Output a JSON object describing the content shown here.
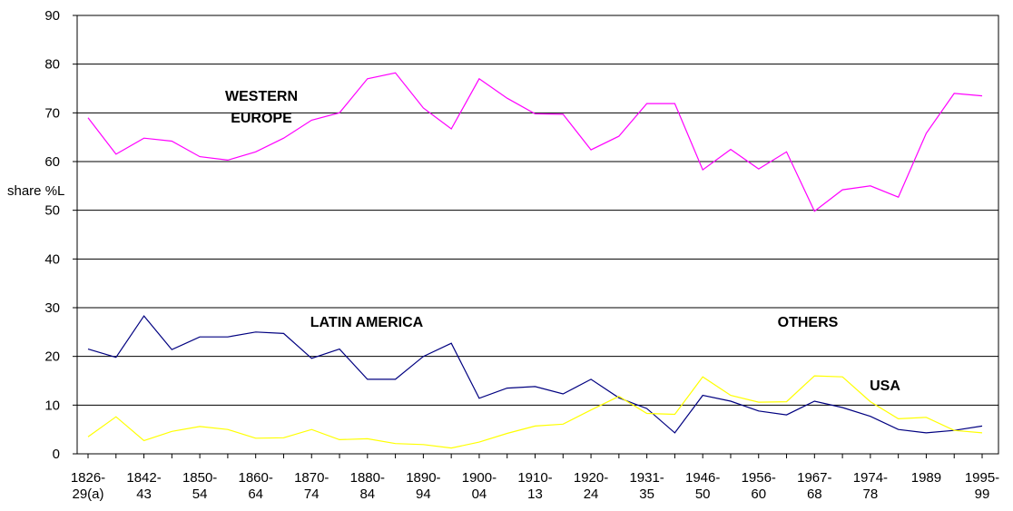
{
  "chart_data": {
    "type": "line",
    "y_label": "share %L",
    "categories": [
      "1826-\n29(a)",
      null,
      "1842-\n43",
      null,
      "1850-\n54",
      null,
      "1860-\n64",
      null,
      "1870-\n74",
      null,
      "1880-\n84",
      null,
      "1890-\n94",
      null,
      "1900-\n04",
      null,
      "1910-\n13",
      null,
      "1920-\n24",
      null,
      "1931-\n35",
      null,
      "1946-\n50",
      null,
      "1956-\n60",
      null,
      "1967-\n68",
      null,
      "1974-\n78",
      null,
      "1989",
      null,
      "1995-\n99"
    ],
    "series": [
      {
        "name": "WESTERN EUROPE",
        "color": "#ff00ff",
        "values": [
          69,
          61.5,
          64.8,
          64.2,
          61,
          60.3,
          62,
          64.8,
          68.5,
          70,
          77,
          78.2,
          71,
          66.7,
          77,
          73,
          69.8,
          69.7,
          62.4,
          65.2,
          71.9,
          71.9,
          58.3,
          62.5,
          58.5,
          62,
          49.8,
          54.2,
          55,
          52.7,
          65.8,
          74,
          73.5
        ]
      },
      {
        "name": "LATIN AMERICA",
        "color": "#000080",
        "values": [
          21.5,
          19.8,
          28.3,
          21.4,
          24,
          24,
          25,
          24.7,
          19.6,
          21.5,
          15.3,
          15.3,
          20,
          22.7,
          11.4,
          13.5,
          13.8,
          12.3,
          15.3,
          11.5,
          9.3,
          4.3,
          12,
          10.8,
          8.8,
          8,
          10.8,
          9.5,
          7.7,
          5,
          4.3,
          4.8,
          5.7
        ]
      },
      {
        "name": "USA",
        "color": "#ffff00",
        "values": [
          3.5,
          7.6,
          2.7,
          4.6,
          5.6,
          5,
          3.2,
          3.3,
          5,
          2.9,
          3.1,
          2.1,
          1.9,
          1.2,
          2.4,
          4.2,
          5.7,
          6.1,
          9,
          11.8,
          8.3,
          8.1,
          15.8,
          12,
          10.6,
          10.7,
          16,
          15.8,
          10.7,
          7.2,
          7.5,
          4.8,
          4.3
        ]
      }
    ],
    "annotations": [
      "OTHERS"
    ],
    "ylim": [
      0,
      90
    ],
    "yticks": [
      0,
      10,
      20,
      30,
      40,
      50,
      60,
      70,
      80,
      90
    ],
    "grid": true
  }
}
